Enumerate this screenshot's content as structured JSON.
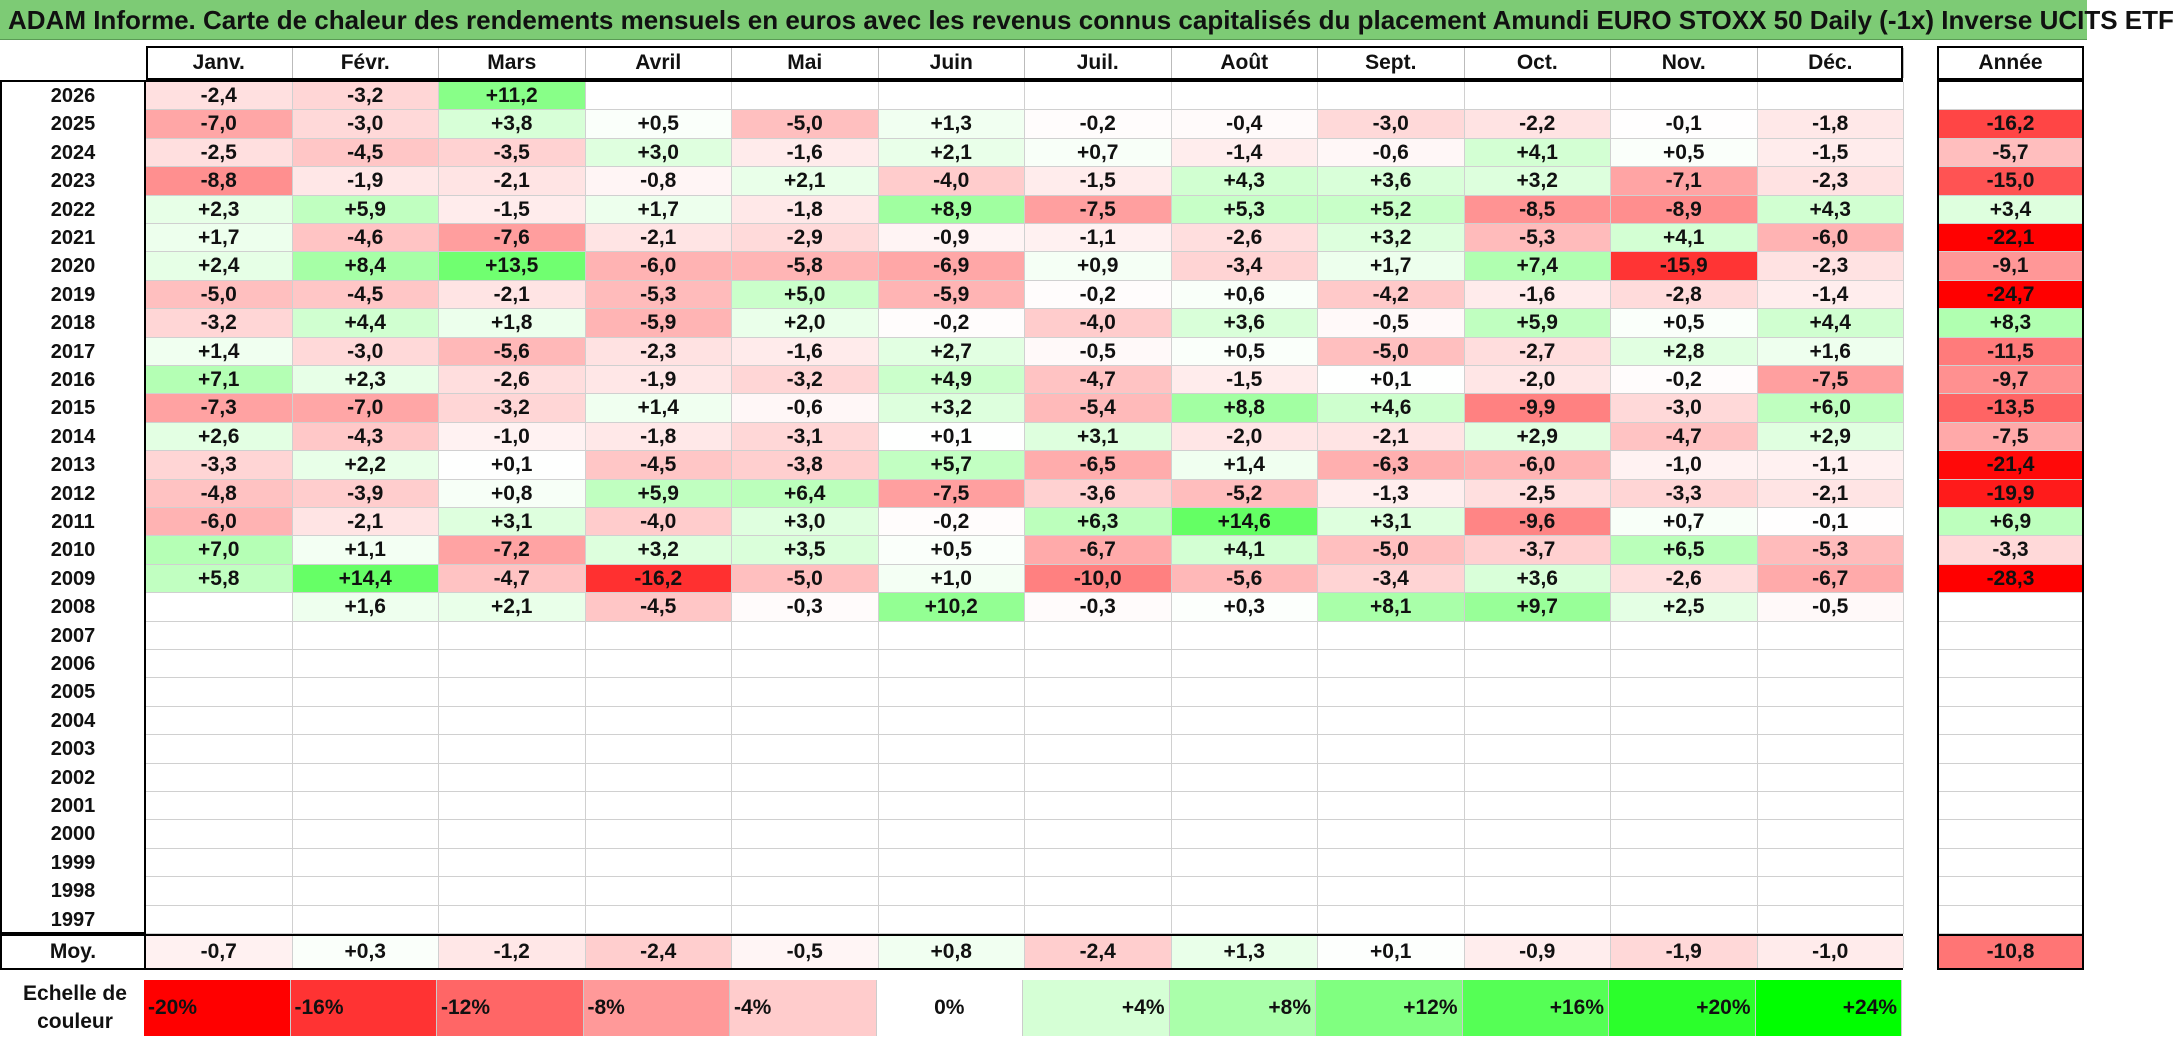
{
  "title": "ADAM Informe. Carte de chaleur des rendements mensuels en euros avec les revenus connus capitalisés du placement Amundi EURO STOXX 50 Daily (-1x) Inverse UCITS ETF",
  "months": [
    "Janv.",
    "Févr.",
    "Mars",
    "Avril",
    "Mai",
    "Juin",
    "Juil.",
    "Août",
    "Sept.",
    "Oct.",
    "Nov.",
    "Déc."
  ],
  "annual_header": "Année",
  "avg_label": "Moy.",
  "scale_label_line1": "Echelle de",
  "scale_label_line2": "couleur",
  "colors": {
    "title_bg": "#7dcb75",
    "neg_max": "#ff0000",
    "pos_max": "#00ff00",
    "neutral": "#ffffff"
  },
  "chart_data": {
    "type": "heatmap",
    "years": [
      "2026",
      "2025",
      "2024",
      "2023",
      "2022",
      "2021",
      "2020",
      "2019",
      "2018",
      "2017",
      "2016",
      "2015",
      "2014",
      "2013",
      "2012",
      "2011",
      "2010",
      "2009",
      "2008",
      "2007",
      "2006",
      "2005",
      "2004",
      "2003",
      "2002",
      "2001",
      "2000",
      "1999",
      "1998",
      "1997"
    ],
    "values": [
      [
        "-2,4",
        "-3,2",
        "+11,2",
        "",
        "",
        "",
        "",
        "",
        "",
        "",
        "",
        ""
      ],
      [
        "-7,0",
        "-3,0",
        "+3,8",
        "+0,5",
        "-5,0",
        "+1,3",
        "-0,2",
        "-0,4",
        "-3,0",
        "-2,2",
        "-0,1",
        "-1,8"
      ],
      [
        "-2,5",
        "-4,5",
        "-3,5",
        "+3,0",
        "-1,6",
        "+2,1",
        "+0,7",
        "-1,4",
        "-0,6",
        "+4,1",
        "+0,5",
        "-1,5"
      ],
      [
        "-8,8",
        "-1,9",
        "-2,1",
        "-0,8",
        "+2,1",
        "-4,0",
        "-1,5",
        "+4,3",
        "+3,6",
        "+3,2",
        "-7,1",
        "-2,3"
      ],
      [
        "+2,3",
        "+5,9",
        "-1,5",
        "+1,7",
        "-1,8",
        "+8,9",
        "-7,5",
        "+5,3",
        "+5,2",
        "-8,5",
        "-8,9",
        "+4,3"
      ],
      [
        "+1,7",
        "-4,6",
        "-7,6",
        "-2,1",
        "-2,9",
        "-0,9",
        "-1,1",
        "-2,6",
        "+3,2",
        "-5,3",
        "+4,1",
        "-6,0"
      ],
      [
        "+2,4",
        "+8,4",
        "+13,5",
        "-6,0",
        "-5,8",
        "-6,9",
        "+0,9",
        "-3,4",
        "+1,7",
        "+7,4",
        "-15,9",
        "-2,3"
      ],
      [
        "-5,0",
        "-4,5",
        "-2,1",
        "-5,3",
        "+5,0",
        "-5,9",
        "-0,2",
        "+0,6",
        "-4,2",
        "-1,6",
        "-2,8",
        "-1,4"
      ],
      [
        "-3,2",
        "+4,4",
        "+1,8",
        "-5,9",
        "+2,0",
        "-0,2",
        "-4,0",
        "+3,6",
        "-0,5",
        "+5,9",
        "+0,5",
        "+4,4"
      ],
      [
        "+1,4",
        "-3,0",
        "-5,6",
        "-2,3",
        "-1,6",
        "+2,7",
        "-0,5",
        "+0,5",
        "-5,0",
        "-2,7",
        "+2,8",
        "+1,6"
      ],
      [
        "+7,1",
        "+2,3",
        "-2,6",
        "-1,9",
        "-3,2",
        "+4,9",
        "-4,7",
        "-1,5",
        "+0,1",
        "-2,0",
        "-0,2",
        "-7,5"
      ],
      [
        "-7,3",
        "-7,0",
        "-3,2",
        "+1,4",
        "-0,6",
        "+3,2",
        "-5,4",
        "+8,8",
        "+4,6",
        "-9,9",
        "-3,0",
        "+6,0"
      ],
      [
        "+2,6",
        "-4,3",
        "-1,0",
        "-1,8",
        "-3,1",
        "+0,1",
        "+3,1",
        "-2,0",
        "-2,1",
        "+2,9",
        "-4,7",
        "+2,9"
      ],
      [
        "-3,3",
        "+2,2",
        "+0,1",
        "-4,5",
        "-3,8",
        "+5,7",
        "-6,5",
        "+1,4",
        "-6,3",
        "-6,0",
        "-1,0",
        "-1,1"
      ],
      [
        "-4,8",
        "-3,9",
        "+0,8",
        "+5,9",
        "+6,4",
        "-7,5",
        "-3,6",
        "-5,2",
        "-1,3",
        "-2,5",
        "-3,3",
        "-2,1"
      ],
      [
        "-6,0",
        "-2,1",
        "+3,1",
        "-4,0",
        "+3,0",
        "-0,2",
        "+6,3",
        "+14,6",
        "+3,1",
        "-9,6",
        "+0,7",
        "-0,1"
      ],
      [
        "+7,0",
        "+1,1",
        "-7,2",
        "+3,2",
        "+3,5",
        "+0,5",
        "-6,7",
        "+4,1",
        "-5,0",
        "-3,7",
        "+6,5",
        "-5,3"
      ],
      [
        "+5,8",
        "+14,4",
        "-4,7",
        "-16,2",
        "-5,0",
        "+1,0",
        "-10,0",
        "-5,6",
        "-3,4",
        "+3,6",
        "-2,6",
        "-6,7"
      ],
      [
        "",
        "+1,6",
        "+2,1",
        "-4,5",
        "-0,3",
        "+10,2",
        "-0,3",
        "+0,3",
        "+8,1",
        "+9,7",
        "+2,5",
        "-0,5"
      ],
      [
        "",
        "",
        "",
        "",
        "",
        "",
        "",
        "",
        "",
        "",
        "",
        ""
      ],
      [
        "",
        "",
        "",
        "",
        "",
        "",
        "",
        "",
        "",
        "",
        "",
        ""
      ],
      [
        "",
        "",
        "",
        "",
        "",
        "",
        "",
        "",
        "",
        "",
        "",
        ""
      ],
      [
        "",
        "",
        "",
        "",
        "",
        "",
        "",
        "",
        "",
        "",
        "",
        ""
      ],
      [
        "",
        "",
        "",
        "",
        "",
        "",
        "",
        "",
        "",
        "",
        "",
        ""
      ],
      [
        "",
        "",
        "",
        "",
        "",
        "",
        "",
        "",
        "",
        "",
        "",
        ""
      ],
      [
        "",
        "",
        "",
        "",
        "",
        "",
        "",
        "",
        "",
        "",
        "",
        ""
      ],
      [
        "",
        "",
        "",
        "",
        "",
        "",
        "",
        "",
        "",
        "",
        "",
        ""
      ],
      [
        "",
        "",
        "",
        "",
        "",
        "",
        "",
        "",
        "",
        "",
        "",
        ""
      ],
      [
        "",
        "",
        "",
        "",
        "",
        "",
        "",
        "",
        "",
        "",
        "",
        ""
      ],
      [
        "",
        "",
        "",
        "",
        "",
        "",
        "",
        "",
        "",
        "",
        "",
        ""
      ]
    ],
    "annual": [
      "",
      "-16,2",
      "-5,7",
      "-15,0",
      "+3,4",
      "-22,1",
      "-9,1",
      "-24,7",
      "+8,3",
      "-11,5",
      "-9,7",
      "-13,5",
      "-7,5",
      "-21,4",
      "-19,9",
      "+6,9",
      "-3,3",
      "-28,3",
      "",
      "",
      "",
      "",
      "",
      "",
      "",
      "",
      "",
      "",
      "",
      ""
    ],
    "monthly_avg": [
      "-0,7",
      "+0,3",
      "-1,2",
      "-2,4",
      "-0,5",
      "+0,8",
      "-2,4",
      "+1,3",
      "+0,1",
      "-0,9",
      "-1,9",
      "-1,0"
    ],
    "annual_avg": "-10,8",
    "color_scale": [
      "-20%",
      "-16%",
      "-12%",
      "-8%",
      "-4%",
      "0%",
      "+4%",
      "+8%",
      "+12%",
      "+16%",
      "+20%",
      "+24%"
    ]
  }
}
